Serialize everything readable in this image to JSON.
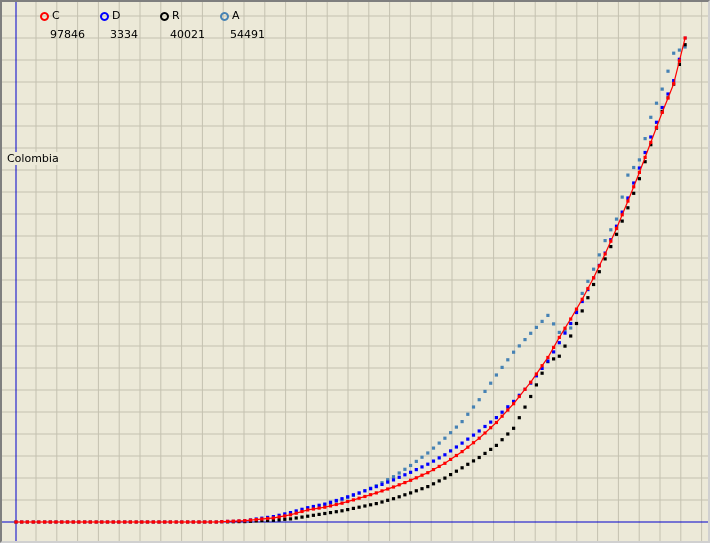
{
  "country": "Colombia",
  "legend": [
    {
      "key": "C",
      "value": "97846",
      "color": "#ff0000"
    },
    {
      "key": "D",
      "value": "3334",
      "color": "#0000ff"
    },
    {
      "key": "R",
      "value": "40021",
      "color": "#000000"
    },
    {
      "key": "A",
      "value": "54491",
      "color": "#4682b4"
    }
  ],
  "chart_data": {
    "type": "scatter",
    "title": "",
    "xlabel": "",
    "ylabel": "",
    "grid": true,
    "legend_position": "top-left",
    "x_range": [
      0,
      121
    ],
    "y_range": [
      0,
      108000
    ],
    "series": [
      {
        "name": "C",
        "color": "#ff0000",
        "x": [
          0,
          10,
          20,
          30,
          35,
          40,
          45,
          48,
          51,
          54,
          57,
          60,
          63,
          66,
          69,
          72,
          75,
          78,
          81,
          84,
          87,
          90,
          93,
          95,
          97,
          99,
          101,
          103,
          105,
          107,
          109,
          111,
          113,
          115,
          117
        ],
        "y": [
          0,
          0,
          0,
          0,
          5,
          300,
          900,
          1600,
          2700,
          3300,
          4200,
          5300,
          6500,
          7800,
          9300,
          11000,
          13100,
          15700,
          18700,
          22200,
          26400,
          31200,
          36700,
          41200,
          45300,
          49700,
          54500,
          59800,
          65500,
          71600,
          78000,
          84700,
          91400,
          97800,
          108000
        ]
      },
      {
        "name": "D",
        "color": "#0000ff",
        "x": [
          0,
          10,
          20,
          30,
          35,
          40,
          45,
          48,
          51,
          54,
          57,
          60,
          63,
          66,
          69,
          72,
          75,
          78,
          81,
          84,
          87,
          90,
          93,
          95,
          97,
          99,
          101,
          103,
          105,
          107,
          109,
          111,
          113,
          115,
          117
        ],
        "y": [
          0,
          0,
          0,
          0,
          5,
          300,
          1200,
          2100,
          3200,
          4000,
          5200,
          6500,
          7900,
          9400,
          11100,
          12900,
          15000,
          17600,
          20300,
          23300,
          26900,
          31000,
          35900,
          40000,
          44300,
          49200,
          54500,
          60000,
          66000,
          72300,
          79000,
          85900,
          92500,
          98500,
          108000
        ]
      },
      {
        "name": "R",
        "color": "#000000",
        "x": [
          0,
          10,
          20,
          30,
          35,
          40,
          45,
          48,
          51,
          54,
          57,
          60,
          63,
          66,
          69,
          72,
          75,
          78,
          81,
          84,
          87,
          90,
          93,
          95,
          97,
          99,
          101,
          103,
          105,
          107,
          109,
          111,
          113,
          115,
          117
        ],
        "y": [
          0,
          0,
          0,
          0,
          0,
          100,
          400,
          700,
          1300,
          1900,
          2500,
          3300,
          4100,
          5200,
          6500,
          7900,
          9800,
          12100,
          14400,
          17100,
          20900,
          28000,
          35800,
          37000,
          41500,
          47100,
          53000,
          58700,
          64200,
          70100,
          76600,
          84200,
          91600,
          97700,
          106500
        ]
      },
      {
        "name": "A",
        "color": "#4682b4",
        "x": [
          0,
          10,
          20,
          30,
          35,
          40,
          45,
          48,
          51,
          54,
          57,
          60,
          63,
          66,
          69,
          72,
          75,
          78,
          81,
          84,
          87,
          90,
          93,
          95,
          97,
          99,
          101,
          103,
          105,
          107,
          109,
          111,
          113,
          115,
          117
        ],
        "y": [
          0,
          0,
          0,
          0,
          5,
          200,
          1000,
          1800,
          3100,
          3900,
          5000,
          6400,
          8100,
          10100,
          12600,
          15400,
          18700,
          22400,
          27300,
          32800,
          37900,
          42100,
          46100,
          42300,
          43300,
          51000,
          56400,
          62800,
          67600,
          77400,
          80800,
          90300,
          96600,
          104600,
          106000
        ]
      }
    ]
  }
}
